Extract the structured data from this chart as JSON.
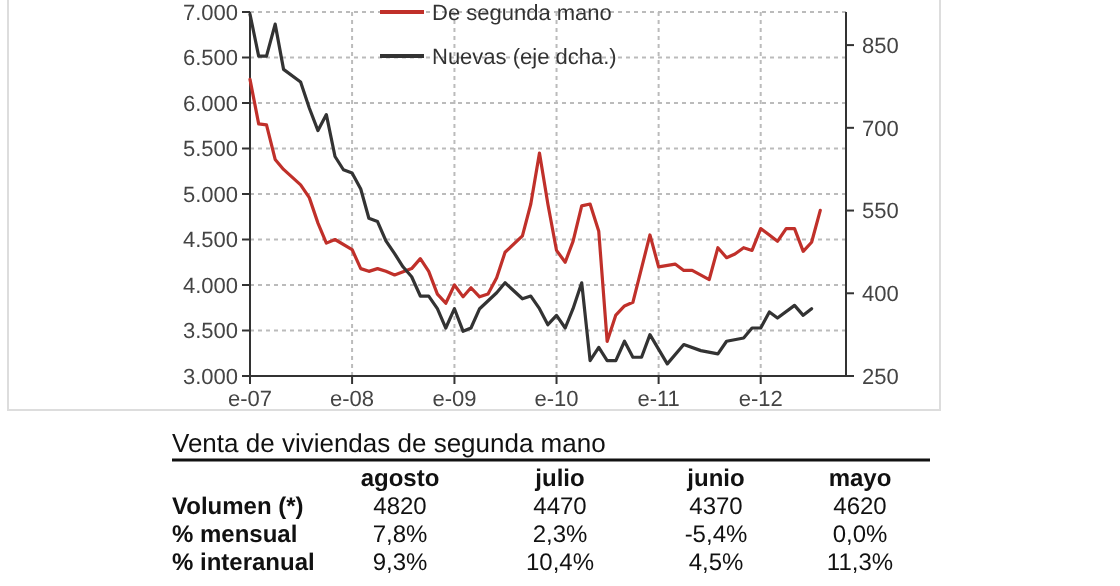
{
  "chart_data": [
    {
      "type": "line",
      "xlim": [
        "2007-01",
        "2012-11"
      ],
      "xticks": [
        {
          "value": "2007-01",
          "label": "e-07"
        },
        {
          "value": "2008-01",
          "label": "e-08"
        },
        {
          "value": "2009-01",
          "label": "e-09"
        },
        {
          "value": "2010-01",
          "label": "e-10"
        },
        {
          "value": "2011-01",
          "label": "e-11"
        },
        {
          "value": "2012-01",
          "label": "e-12"
        }
      ],
      "ylim": [
        3000,
        7000
      ],
      "yticks": [
        {
          "value": 3000,
          "label": "3.000"
        },
        {
          "value": 3500,
          "label": "3.500"
        },
        {
          "value": 4000,
          "label": "4.000"
        },
        {
          "value": 4500,
          "label": "4.500"
        },
        {
          "value": 5000,
          "label": "5.000"
        },
        {
          "value": 5500,
          "label": "5.500"
        },
        {
          "value": 6000,
          "label": "6.000"
        },
        {
          "value": 6500,
          "label": "6.500"
        },
        {
          "value": 7000,
          "label": "7.000"
        }
      ],
      "y2lim": [
        250,
        910
      ],
      "y2ticks": [
        250,
        400,
        550,
        700,
        850
      ],
      "grid": true,
      "legend": "top",
      "series": [
        {
          "name": "De segunda mano",
          "color": "#c0302a",
          "x": [
            "2007-01",
            "2007-02",
            "2007-03",
            "2007-04",
            "2007-05",
            "2007-07",
            "2007-08",
            "2007-09",
            "2007-10",
            "2007-11",
            "2008-01",
            "2008-02",
            "2008-03",
            "2008-04",
            "2008-05",
            "2008-06",
            "2008-08",
            "2008-09",
            "2008-10",
            "2008-11",
            "2008-12",
            "2009-01",
            "2009-02",
            "2009-03",
            "2009-04",
            "2009-05",
            "2009-06",
            "2009-07",
            "2009-09",
            "2009-10",
            "2009-11",
            "2009-12",
            "2010-01",
            "2010-02",
            "2010-03",
            "2010-04",
            "2010-05",
            "2010-06",
            "2010-07",
            "2010-08",
            "2010-09",
            "2010-10",
            "2010-12",
            "2011-01",
            "2011-03",
            "2011-04",
            "2011-05",
            "2011-07",
            "2011-08",
            "2011-09",
            "2011-10",
            "2011-11",
            "2011-12",
            "2012-01",
            "2012-02",
            "2012-03",
            "2012-04",
            "2012-05",
            "2012-06",
            "2012-07",
            "2012-08"
          ],
          "values": [
            6260,
            5770,
            5760,
            5380,
            5270,
            5100,
            4960,
            4680,
            4460,
            4500,
            4390,
            4180,
            4150,
            4180,
            4150,
            4110,
            4180,
            4290,
            4150,
            3900,
            3800,
            4000,
            3870,
            3970,
            3870,
            3900,
            4080,
            4360,
            4540,
            4890,
            5450,
            4890,
            4380,
            4250,
            4480,
            4870,
            4890,
            4590,
            3380,
            3670,
            3770,
            3810,
            4550,
            4200,
            4230,
            4160,
            4160,
            4060,
            4410,
            4300,
            4340,
            4410,
            4380,
            4620,
            4550,
            4480,
            4620,
            4620,
            4370,
            4470,
            4820
          ]
        },
        {
          "name": "Nuevas (eje dcha.)",
          "color": "#333333",
          "axis": "y2",
          "x": [
            "2007-01",
            "2007-02",
            "2007-03",
            "2007-04",
            "2007-05",
            "2007-07",
            "2007-08",
            "2007-09",
            "2007-10",
            "2007-11",
            "2007-12",
            "2008-01",
            "2008-02",
            "2008-03",
            "2008-04",
            "2008-05",
            "2008-06",
            "2008-07",
            "2008-08",
            "2008-09",
            "2008-10",
            "2008-11",
            "2008-12",
            "2009-01",
            "2009-02",
            "2009-03",
            "2009-04",
            "2009-06",
            "2009-07",
            "2009-09",
            "2009-10",
            "2009-11",
            "2009-12",
            "2010-01",
            "2010-02",
            "2010-03",
            "2010-04",
            "2010-05",
            "2010-06",
            "2010-07",
            "2010-08",
            "2010-09",
            "2010-10",
            "2010-11",
            "2010-12",
            "2011-02",
            "2011-04",
            "2011-06",
            "2011-08",
            "2011-09",
            "2011-11",
            "2011-12",
            "2012-01",
            "2012-02",
            "2012-03",
            "2012-05",
            "2012-06",
            "2012-07"
          ],
          "values": [
            906,
            830,
            830,
            888,
            806,
            783,
            736,
            695,
            724,
            648,
            624,
            618,
            589,
            536,
            530,
            495,
            472,
            448,
            430,
            395,
            395,
            372,
            337,
            372,
            331,
            337,
            372,
            401,
            419,
            390,
            395,
            372,
            343,
            360,
            337,
            372,
            419,
            278,
            302,
            278,
            278,
            313,
            284,
            284,
            325,
            272,
            307,
            296,
            290,
            313,
            319,
            337,
            337,
            366,
            355,
            378,
            360,
            372
          ]
        }
      ]
    },
    {
      "type": "other",
      "title": "Venta de viviendas de segunda mano",
      "annotations": [
        "agosto",
        "julio",
        "junio",
        "mayo",
        "Volumen (*)",
        "4820",
        "4470",
        "4370",
        "4620",
        "% mensual",
        "7,8%",
        "2,3%",
        "-5,4%",
        "0,0%",
        "% interanual",
        "9,3%",
        "10,4%",
        "4,5%",
        "11,3%"
      ]
    }
  ]
}
